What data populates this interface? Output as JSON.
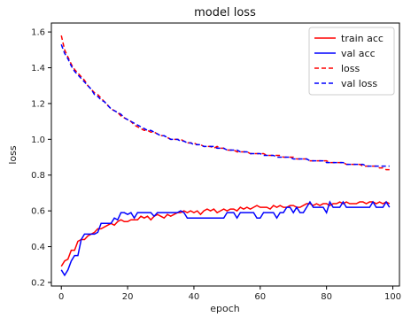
{
  "chart_data": {
    "type": "line",
    "title": "model loss",
    "xlabel": "epoch",
    "ylabel": "loss",
    "xlim": [
      -3,
      102
    ],
    "ylim": [
      0.18,
      1.65
    ],
    "xticks": [
      0,
      20,
      40,
      60,
      80,
      100
    ],
    "yticks": [
      0.2,
      0.4,
      0.6,
      0.8,
      1.0,
      1.2,
      1.4,
      1.6
    ],
    "grid": false,
    "legend_position": "top-right",
    "x": [
      0,
      1,
      2,
      3,
      4,
      5,
      6,
      7,
      8,
      9,
      10,
      11,
      12,
      13,
      14,
      15,
      16,
      17,
      18,
      19,
      20,
      21,
      22,
      23,
      24,
      25,
      26,
      27,
      28,
      29,
      30,
      31,
      32,
      33,
      34,
      35,
      36,
      37,
      38,
      39,
      40,
      41,
      42,
      43,
      44,
      45,
      46,
      47,
      48,
      49,
      50,
      51,
      52,
      53,
      54,
      55,
      56,
      57,
      58,
      59,
      60,
      61,
      62,
      63,
      64,
      65,
      66,
      67,
      68,
      69,
      70,
      71,
      72,
      73,
      74,
      75,
      76,
      77,
      78,
      79,
      80,
      81,
      82,
      83,
      84,
      85,
      86,
      87,
      88,
      89,
      90,
      91,
      92,
      93,
      94,
      95,
      96,
      97,
      98,
      99
    ],
    "series": [
      {
        "name": " train acc",
        "color": "#ff0000",
        "dash": "solid",
        "values": [
          0.29,
          0.32,
          0.33,
          0.38,
          0.38,
          0.43,
          0.44,
          0.44,
          0.46,
          0.47,
          0.48,
          0.5,
          0.5,
          0.51,
          0.52,
          0.53,
          0.52,
          0.54,
          0.55,
          0.54,
          0.54,
          0.55,
          0.55,
          0.55,
          0.57,
          0.56,
          0.57,
          0.55,
          0.57,
          0.58,
          0.57,
          0.56,
          0.58,
          0.57,
          0.58,
          0.59,
          0.59,
          0.6,
          0.59,
          0.6,
          0.59,
          0.6,
          0.58,
          0.6,
          0.61,
          0.6,
          0.61,
          0.59,
          0.6,
          0.61,
          0.6,
          0.61,
          0.61,
          0.6,
          0.62,
          0.61,
          0.62,
          0.61,
          0.62,
          0.63,
          0.62,
          0.62,
          0.62,
          0.61,
          0.63,
          0.62,
          0.63,
          0.62,
          0.62,
          0.63,
          0.63,
          0.62,
          0.62,
          0.63,
          0.64,
          0.64,
          0.63,
          0.64,
          0.63,
          0.64,
          0.64,
          0.63,
          0.64,
          0.64,
          0.65,
          0.64,
          0.65,
          0.64,
          0.64,
          0.64,
          0.65,
          0.65,
          0.64,
          0.65,
          0.65,
          0.64,
          0.65,
          0.64,
          0.65,
          0.64
        ]
      },
      {
        "name": "val acc",
        "color": "#0000ff",
        "dash": "solid",
        "values": [
          0.27,
          0.24,
          0.27,
          0.32,
          0.35,
          0.35,
          0.44,
          0.47,
          0.47,
          0.47,
          0.47,
          0.48,
          0.53,
          0.53,
          0.53,
          0.53,
          0.56,
          0.55,
          0.59,
          0.59,
          0.58,
          0.59,
          0.56,
          0.59,
          0.59,
          0.59,
          0.59,
          0.59,
          0.57,
          0.59,
          0.59,
          0.59,
          0.59,
          0.59,
          0.59,
          0.59,
          0.6,
          0.59,
          0.56,
          0.56,
          0.56,
          0.56,
          0.56,
          0.56,
          0.56,
          0.56,
          0.56,
          0.56,
          0.56,
          0.56,
          0.59,
          0.59,
          0.59,
          0.56,
          0.59,
          0.59,
          0.59,
          0.59,
          0.59,
          0.56,
          0.56,
          0.59,
          0.59,
          0.59,
          0.59,
          0.56,
          0.59,
          0.59,
          0.62,
          0.62,
          0.59,
          0.62,
          0.59,
          0.59,
          0.62,
          0.65,
          0.62,
          0.62,
          0.62,
          0.62,
          0.59,
          0.65,
          0.62,
          0.62,
          0.62,
          0.65,
          0.62,
          0.62,
          0.62,
          0.62,
          0.62,
          0.62,
          0.62,
          0.62,
          0.65,
          0.62,
          0.62,
          0.62,
          0.65,
          0.62
        ]
      },
      {
        "name": "loss",
        "color": "#ff0000",
        "dash": "dashed",
        "values": [
          1.58,
          1.5,
          1.46,
          1.42,
          1.39,
          1.37,
          1.35,
          1.33,
          1.3,
          1.28,
          1.26,
          1.25,
          1.23,
          1.21,
          1.19,
          1.17,
          1.16,
          1.15,
          1.13,
          1.12,
          1.11,
          1.1,
          1.08,
          1.07,
          1.06,
          1.05,
          1.05,
          1.04,
          1.04,
          1.03,
          1.02,
          1.02,
          1.01,
          1.0,
          1.0,
          1.0,
          1.0,
          0.99,
          0.98,
          0.98,
          0.98,
          0.97,
          0.97,
          0.96,
          0.96,
          0.96,
          0.95,
          0.96,
          0.95,
          0.95,
          0.94,
          0.94,
          0.94,
          0.93,
          0.93,
          0.93,
          0.93,
          0.92,
          0.92,
          0.92,
          0.92,
          0.92,
          0.91,
          0.91,
          0.91,
          0.91,
          0.91,
          0.9,
          0.9,
          0.9,
          0.9,
          0.89,
          0.89,
          0.89,
          0.89,
          0.88,
          0.88,
          0.88,
          0.88,
          0.88,
          0.88,
          0.87,
          0.87,
          0.87,
          0.87,
          0.87,
          0.86,
          0.86,
          0.86,
          0.86,
          0.86,
          0.85,
          0.85,
          0.85,
          0.85,
          0.85,
          0.84,
          0.84,
          0.83,
          0.83
        ]
      },
      {
        "name": "val loss",
        "color": "#0000ff",
        "dash": "dashed",
        "values": [
          1.53,
          1.48,
          1.45,
          1.41,
          1.38,
          1.36,
          1.34,
          1.32,
          1.3,
          1.28,
          1.25,
          1.24,
          1.22,
          1.21,
          1.19,
          1.17,
          1.16,
          1.15,
          1.14,
          1.12,
          1.11,
          1.1,
          1.09,
          1.08,
          1.07,
          1.06,
          1.05,
          1.05,
          1.04,
          1.03,
          1.02,
          1.02,
          1.01,
          1.0,
          1.0,
          1.0,
          0.99,
          0.99,
          0.98,
          0.98,
          0.97,
          0.97,
          0.97,
          0.96,
          0.96,
          0.96,
          0.96,
          0.95,
          0.95,
          0.95,
          0.94,
          0.94,
          0.94,
          0.94,
          0.93,
          0.93,
          0.93,
          0.92,
          0.92,
          0.92,
          0.92,
          0.91,
          0.91,
          0.91,
          0.91,
          0.9,
          0.9,
          0.9,
          0.9,
          0.9,
          0.89,
          0.89,
          0.89,
          0.89,
          0.89,
          0.88,
          0.88,
          0.88,
          0.88,
          0.88,
          0.87,
          0.87,
          0.87,
          0.87,
          0.87,
          0.87,
          0.86,
          0.86,
          0.86,
          0.86,
          0.86,
          0.86,
          0.85,
          0.85,
          0.85,
          0.85,
          0.85,
          0.85,
          0.85,
          0.85
        ]
      }
    ]
  }
}
